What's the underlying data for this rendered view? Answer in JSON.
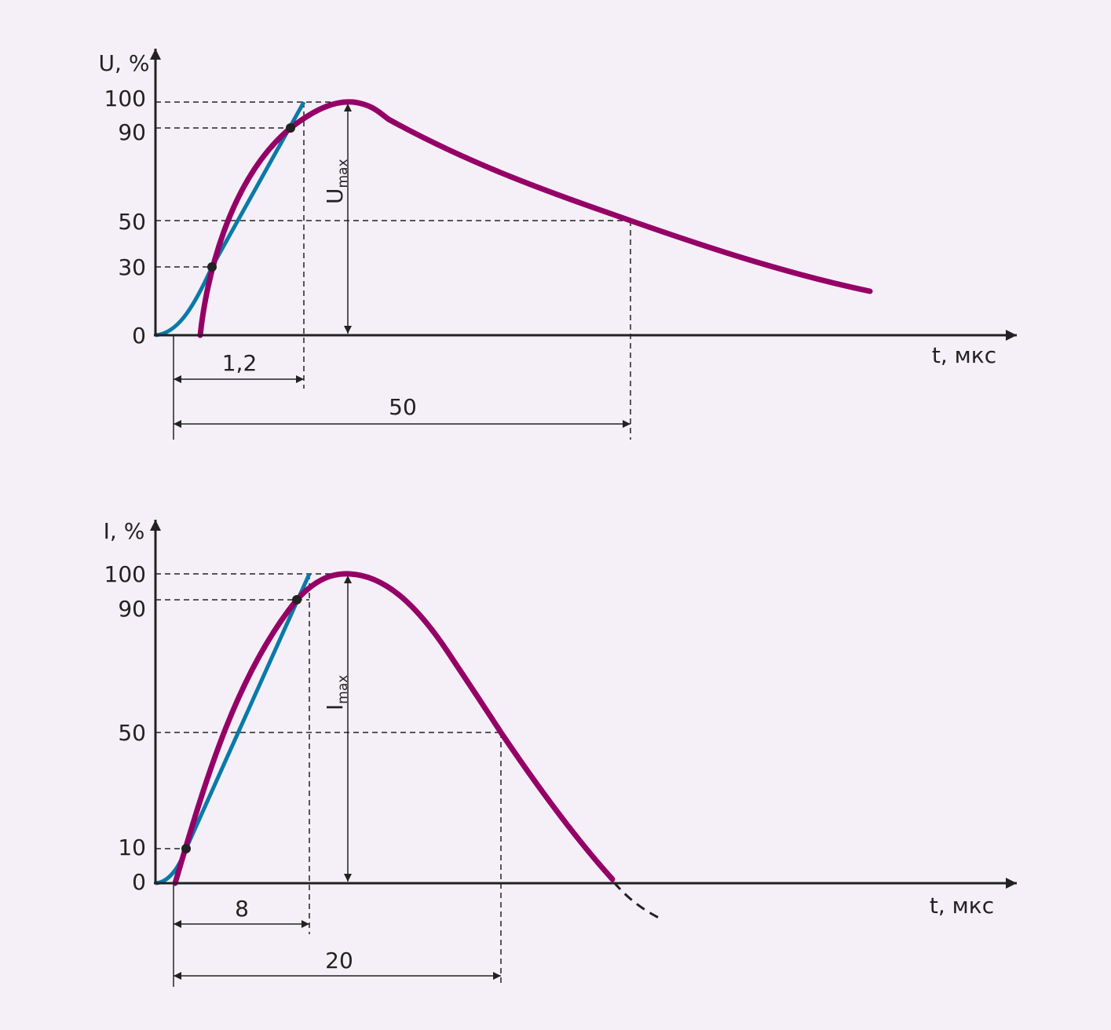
{
  "top": {
    "y_label": "U, %",
    "x_label": "t, мкс",
    "ticks": [
      "100",
      "90",
      "50",
      "30",
      "0"
    ],
    "dims": [
      "1,2",
      "50"
    ],
    "peak_label": {
      "main": "U",
      "sub": "max"
    }
  },
  "bottom": {
    "y_label": "I, %",
    "x_label": "t, мкс",
    "ticks": [
      "100",
      "90",
      "50",
      "10",
      "0"
    ],
    "dims": [
      "8",
      "20"
    ],
    "peak_label": {
      "main": "I",
      "sub": "max"
    }
  }
}
